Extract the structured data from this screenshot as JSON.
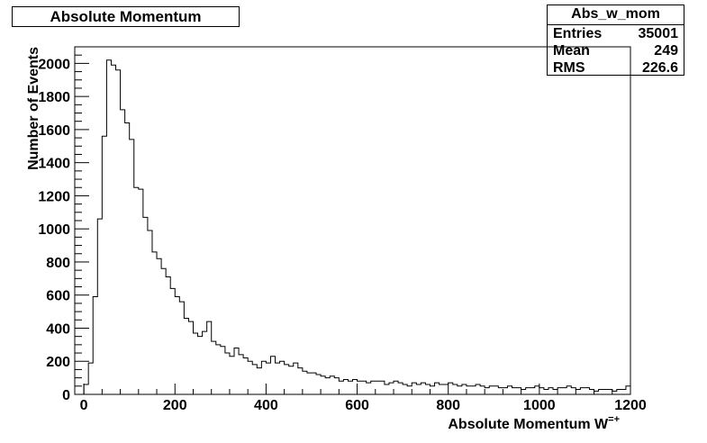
{
  "title": "Absolute Momentum",
  "stats": {
    "name": "Abs_w_mom",
    "rows": [
      {
        "label": "Entries",
        "value": "35001"
      },
      {
        "label": "Mean",
        "value": "249"
      },
      {
        "label": "RMS",
        "value": "226.6"
      }
    ]
  },
  "chart_data": {
    "type": "histogram",
    "title": "Absolute Momentum",
    "xlabel": "Absolute Momentum W",
    "xlabel_superscript": "=+",
    "ylabel": "Number of Events",
    "xlim": [
      -20,
      1200
    ],
    "ylim": [
      0,
      2100
    ],
    "bin_width": 10,
    "bin_start": 0,
    "x_ticks": [
      0,
      200,
      400,
      600,
      800,
      1000,
      1200
    ],
    "y_ticks": [
      0,
      200,
      400,
      600,
      800,
      1000,
      1200,
      1400,
      1600,
      1800,
      2000
    ],
    "values": [
      60,
      190,
      590,
      1060,
      1560,
      2020,
      1990,
      1960,
      1720,
      1640,
      1540,
      1250,
      1240,
      1070,
      990,
      860,
      820,
      760,
      710,
      640,
      590,
      560,
      460,
      440,
      370,
      350,
      380,
      440,
      320,
      300,
      290,
      250,
      230,
      280,
      240,
      220,
      200,
      180,
      160,
      200,
      190,
      230,
      190,
      200,
      180,
      170,
      190,
      160,
      140,
      130,
      130,
      120,
      110,
      100,
      110,
      100,
      80,
      90,
      80,
      90,
      80,
      80,
      70,
      80,
      80,
      80,
      60,
      70,
      80,
      70,
      60,
      50,
      70,
      60,
      70,
      60,
      50,
      70,
      60,
      60,
      70,
      60,
      50,
      60,
      50,
      50,
      60,
      50,
      40,
      50,
      50,
      40,
      40,
      50,
      40,
      40,
      30,
      40,
      40,
      50,
      40,
      30,
      40,
      30,
      40,
      40,
      50,
      40,
      30,
      40,
      40,
      30,
      20,
      30,
      30,
      30,
      20,
      30,
      30,
      50
    ]
  }
}
